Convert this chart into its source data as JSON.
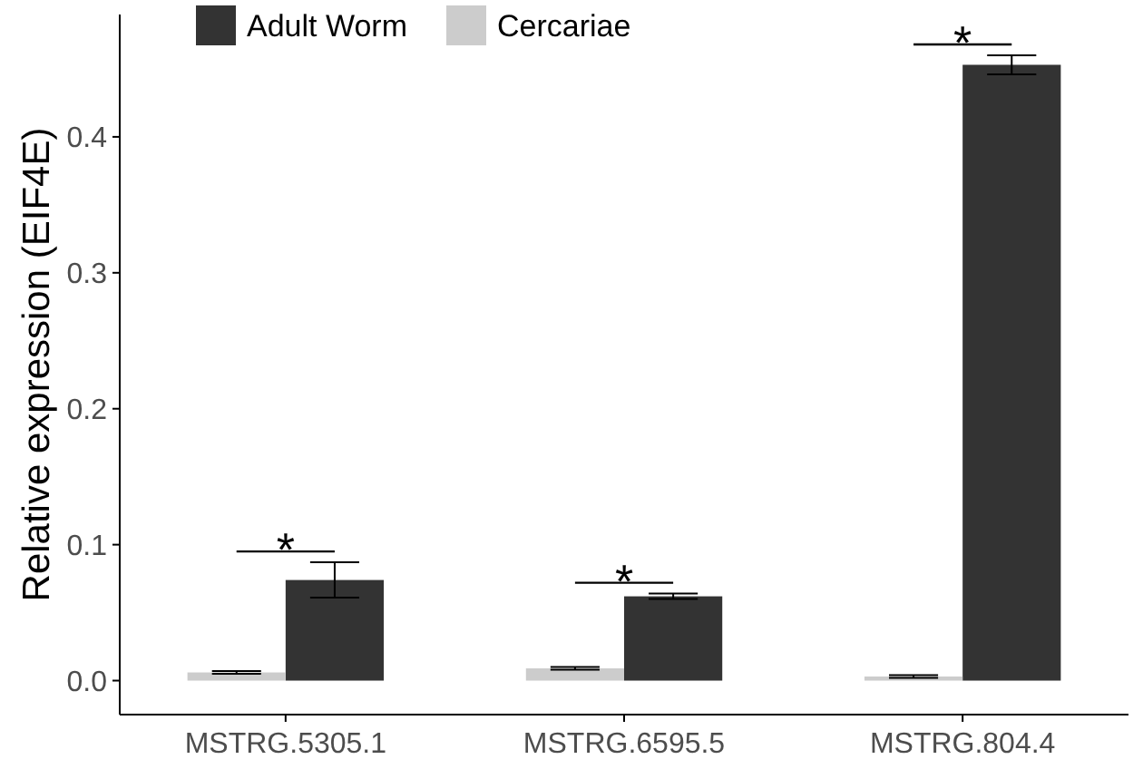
{
  "chart_data": {
    "type": "bar",
    "ylabel": "Relative expression (EIF4E)",
    "categories": [
      "MSTRG.5305.1",
      "MSTRG.6595.5",
      "MSTRG.804.4"
    ],
    "series": [
      {
        "name": "Adult Worm",
        "color": "#333333",
        "values": [
          0.074,
          0.062,
          0.453
        ],
        "errors": [
          0.013,
          0.002,
          0.007
        ]
      },
      {
        "name": "Cercariae",
        "color": "#cccccc",
        "values": [
          0.006,
          0.009,
          0.003
        ],
        "errors": [
          0.001,
          0.001,
          0.001
        ]
      }
    ],
    "ylim": [
      -0.025,
      0.49
    ],
    "yticks": [
      {
        "value": 0,
        "label": "0.0"
      },
      {
        "value": 0.1,
        "label": "0.1"
      },
      {
        "value": 0.2,
        "label": "0.2"
      },
      {
        "value": 0.3,
        "label": "0.3"
      },
      {
        "value": 0.4,
        "label": "0.4"
      }
    ],
    "annotations": [
      "*",
      "*",
      "*"
    ],
    "legend": "top left",
    "grid": false
  }
}
